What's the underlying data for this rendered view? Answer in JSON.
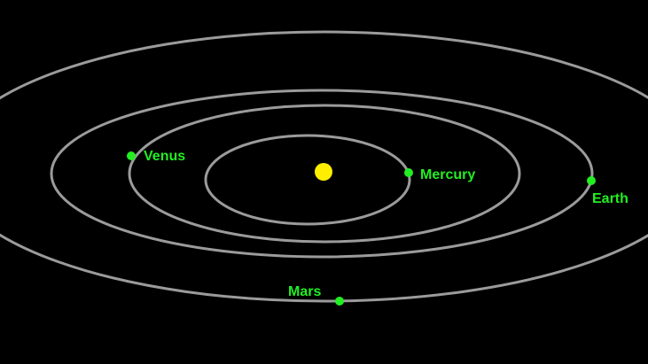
{
  "background_color": "#000000",
  "orbit_color": "#9b9b9b",
  "sun": {
    "name": "sun",
    "color": "#ffee00"
  },
  "planets": [
    {
      "id": "mercury",
      "label": "Mercury",
      "color": "#22ee22"
    },
    {
      "id": "venus",
      "label": "Venus",
      "color": "#22ee22"
    },
    {
      "id": "earth",
      "label": "Earth",
      "color": "#22ee22"
    },
    {
      "id": "mars",
      "label": "Mars",
      "color": "#22ee22"
    }
  ]
}
